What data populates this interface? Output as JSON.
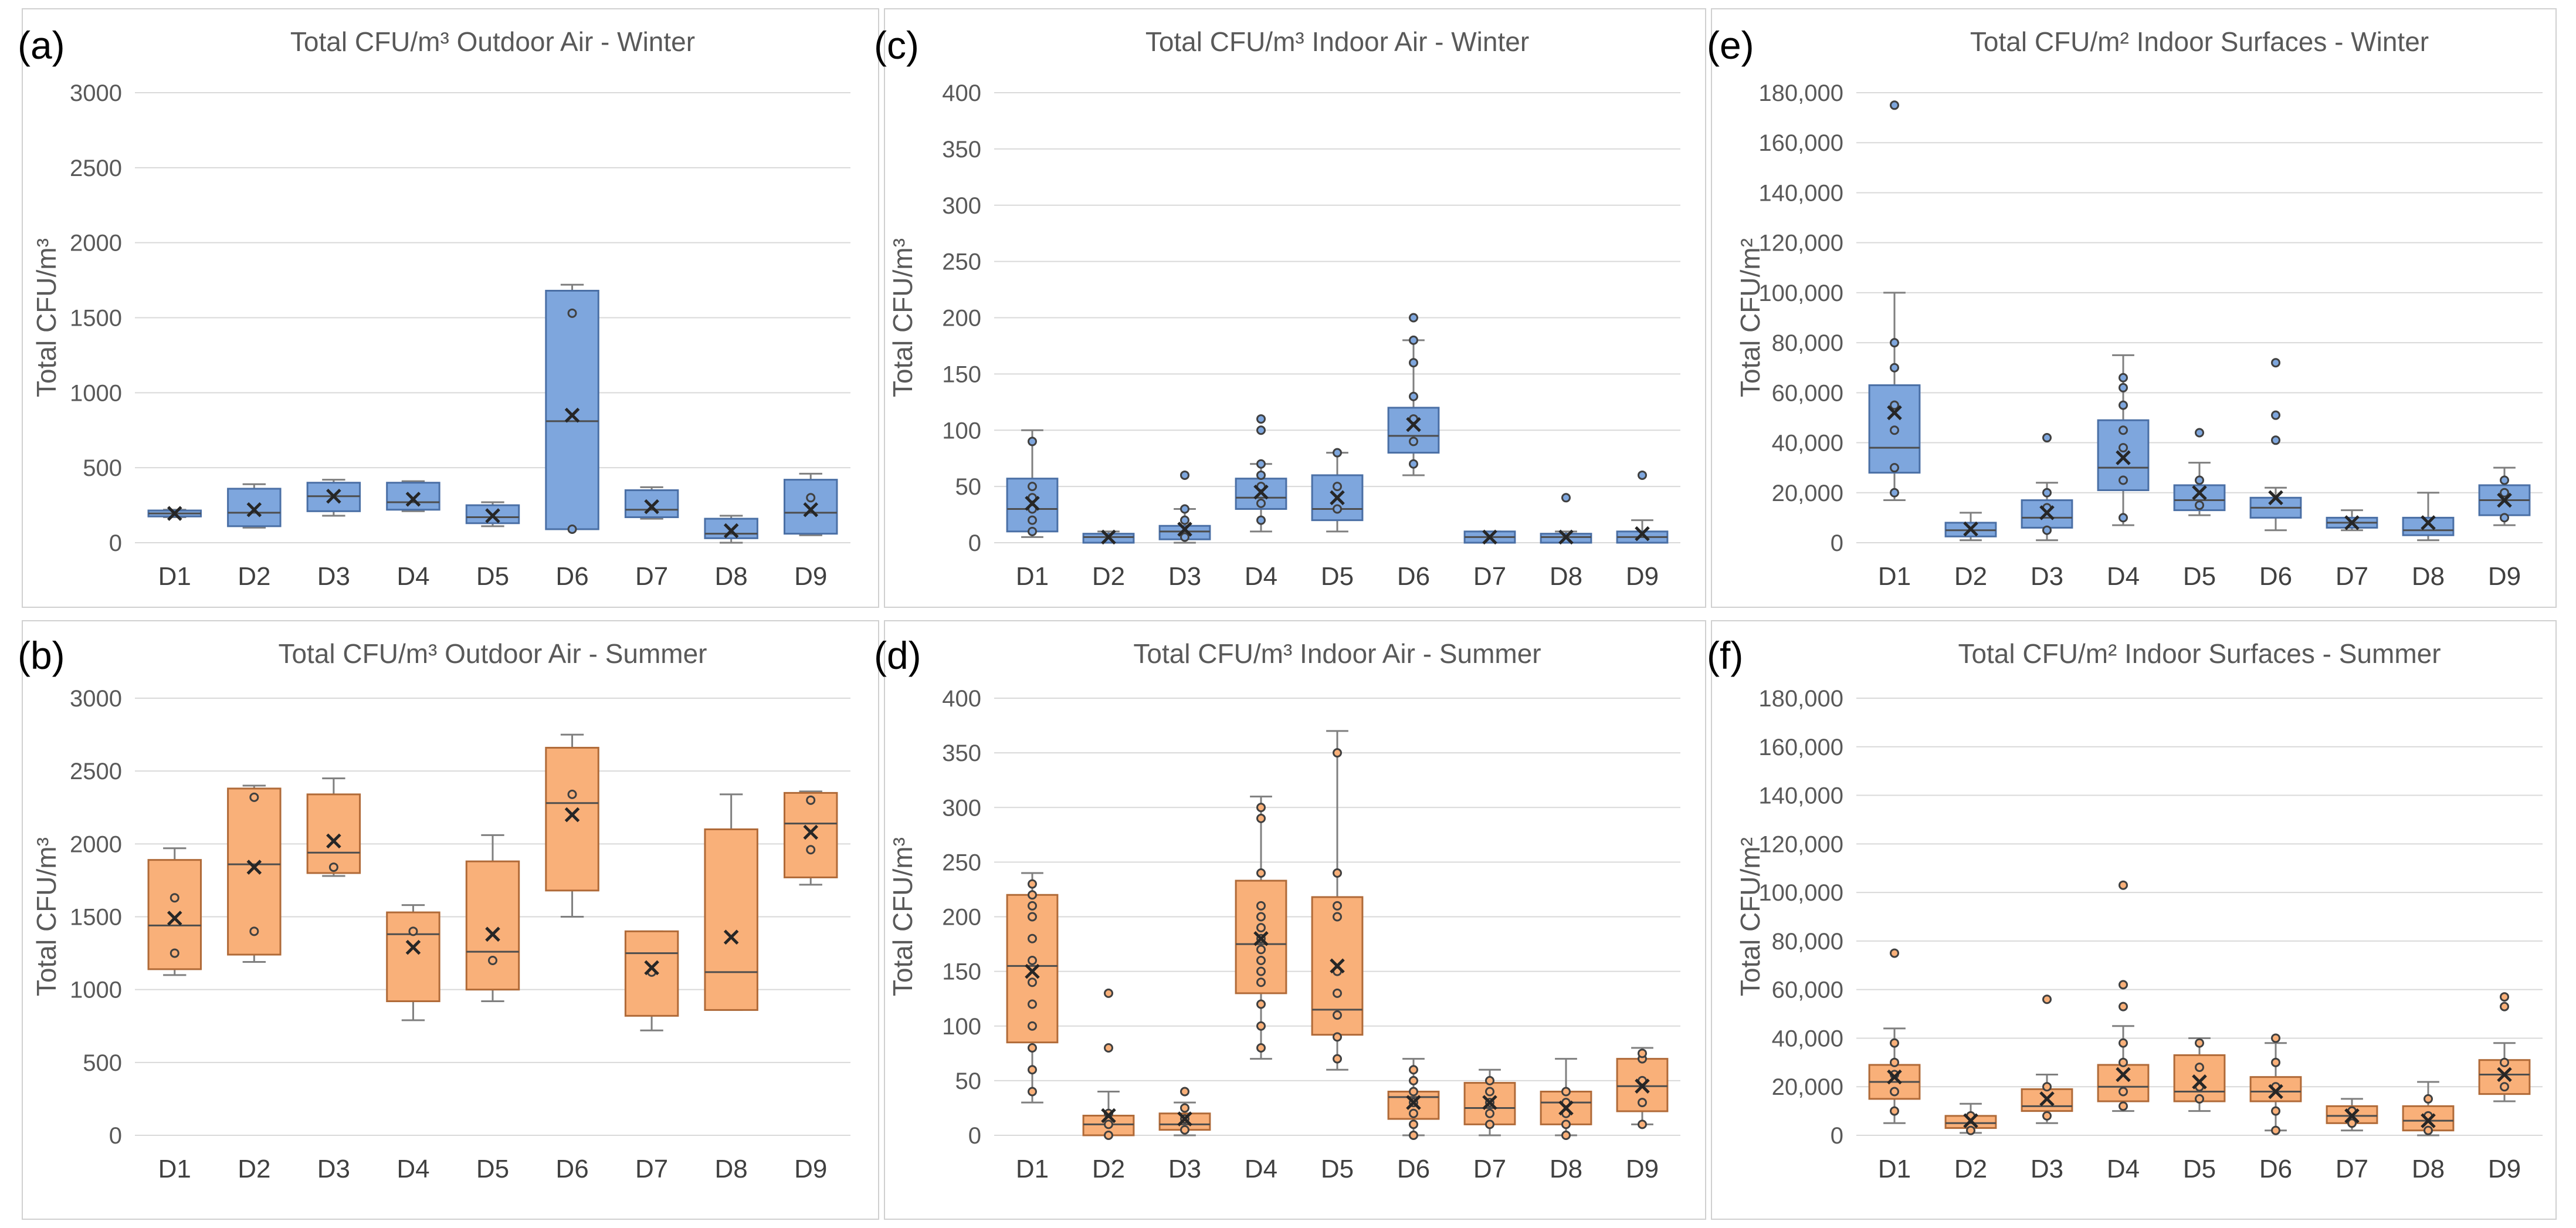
{
  "colors": {
    "winter": "#7ea6dd",
    "winter_edge": "#4a6fa5",
    "summer": "#f9b079",
    "summer_edge": "#b06a38"
  },
  "chart_data": [
    {
      "panel": "(a)",
      "season": "winter",
      "type": "box",
      "title": "Total CFU/m³ Outdoor Air - Winter",
      "ylabel": "Total CFU/m³",
      "ylim": [
        0,
        3000
      ],
      "ystep": 500,
      "ytick_format": "plain",
      "categories": [
        "D1",
        "D2",
        "D3",
        "D4",
        "D5",
        "D6",
        "D7",
        "D8",
        "D9"
      ],
      "boxes": [
        {
          "min": 170,
          "q1": 175,
          "median": 195,
          "q3": 215,
          "max": 220,
          "mean": 195,
          "points": []
        },
        {
          "min": 100,
          "q1": 110,
          "median": 200,
          "q3": 360,
          "max": 390,
          "mean": 220,
          "points": []
        },
        {
          "min": 180,
          "q1": 210,
          "median": 310,
          "q3": 400,
          "max": 420,
          "mean": 310,
          "points": []
        },
        {
          "min": 210,
          "q1": 220,
          "median": 270,
          "q3": 400,
          "max": 410,
          "mean": 290,
          "points": []
        },
        {
          "min": 110,
          "q1": 130,
          "median": 170,
          "q3": 250,
          "max": 270,
          "mean": 180,
          "points": []
        },
        {
          "min": 90,
          "q1": 90,
          "median": 810,
          "q3": 1680,
          "max": 1720,
          "mean": 850,
          "points": [
            90,
            1530
          ]
        },
        {
          "min": 160,
          "q1": 170,
          "median": 220,
          "q3": 350,
          "max": 370,
          "mean": 240,
          "points": []
        },
        {
          "min": 0,
          "q1": 30,
          "median": 60,
          "q3": 160,
          "max": 180,
          "mean": 80,
          "points": []
        },
        {
          "min": 50,
          "q1": 60,
          "median": 200,
          "q3": 420,
          "max": 460,
          "mean": 220,
          "points": [
            300
          ]
        }
      ]
    },
    {
      "panel": "(c)",
      "season": "winter",
      "type": "box",
      "title": "Total CFU/m³ Indoor Air - Winter",
      "ylabel": "Total CFU/m³",
      "ylim": [
        0,
        400
      ],
      "ystep": 50,
      "ytick_format": "plain",
      "categories": [
        "D1",
        "D2",
        "D3",
        "D4",
        "D5",
        "D6",
        "D7",
        "D8",
        "D9"
      ],
      "boxes": [
        {
          "min": 5,
          "q1": 10,
          "median": 30,
          "q3": 57,
          "max": 100,
          "mean": 35,
          "points": [
            10,
            20,
            30,
            40,
            50,
            90
          ]
        },
        {
          "min": 0,
          "q1": 0,
          "median": 5,
          "q3": 8,
          "max": 10,
          "mean": 5,
          "points": []
        },
        {
          "min": 0,
          "q1": 3,
          "median": 10,
          "q3": 15,
          "max": 30,
          "mean": 12,
          "points": [
            5,
            20,
            30,
            60
          ]
        },
        {
          "min": 10,
          "q1": 30,
          "median": 40,
          "q3": 57,
          "max": 70,
          "mean": 45,
          "points": [
            20,
            35,
            50,
            60,
            70,
            100,
            110
          ]
        },
        {
          "min": 10,
          "q1": 20,
          "median": 30,
          "q3": 60,
          "max": 80,
          "mean": 40,
          "points": [
            30,
            50,
            80
          ]
        },
        {
          "min": 60,
          "q1": 80,
          "median": 95,
          "q3": 120,
          "max": 180,
          "mean": 105,
          "points": [
            70,
            90,
            110,
            130,
            160,
            180,
            200
          ]
        },
        {
          "min": 0,
          "q1": 0,
          "median": 5,
          "q3": 10,
          "max": 10,
          "mean": 5,
          "points": []
        },
        {
          "min": 0,
          "q1": 0,
          "median": 5,
          "q3": 8,
          "max": 10,
          "mean": 5,
          "points": [
            40
          ]
        },
        {
          "min": 0,
          "q1": 0,
          "median": 5,
          "q3": 10,
          "max": 20,
          "mean": 8,
          "points": [
            60
          ]
        }
      ]
    },
    {
      "panel": "(e)",
      "season": "winter",
      "type": "box",
      "title": "Total CFU/m² Indoor Surfaces - Winter",
      "ylabel": "Total CFU/m²",
      "ylim": [
        0,
        180000
      ],
      "ystep": 20000,
      "ytick_format": "comma",
      "categories": [
        "D1",
        "D2",
        "D3",
        "D4",
        "D5",
        "D6",
        "D7",
        "D8",
        "D9"
      ],
      "boxes": [
        {
          "min": 17000,
          "q1": 28000,
          "median": 38000,
          "q3": 63000,
          "max": 100000,
          "mean": 52000,
          "points": [
            20000,
            30000,
            45000,
            55000,
            70000,
            80000,
            175000
          ]
        },
        {
          "min": 1000,
          "q1": 2500,
          "median": 5000,
          "q3": 8000,
          "max": 12000,
          "mean": 5500,
          "points": []
        },
        {
          "min": 1000,
          "q1": 6000,
          "median": 10000,
          "q3": 17000,
          "max": 24000,
          "mean": 12000,
          "points": [
            5000,
            14000,
            20000,
            42000
          ]
        },
        {
          "min": 7000,
          "q1": 21000,
          "median": 30000,
          "q3": 49000,
          "max": 75000,
          "mean": 34000,
          "points": [
            10000,
            25000,
            38000,
            45000,
            55000,
            62000,
            66000
          ]
        },
        {
          "min": 11000,
          "q1": 13000,
          "median": 17000,
          "q3": 23000,
          "max": 32000,
          "mean": 20000,
          "points": [
            15000,
            25000,
            44000
          ]
        },
        {
          "min": 5000,
          "q1": 10000,
          "median": 14000,
          "q3": 18000,
          "max": 22000,
          "mean": 18000,
          "points": [
            41000,
            51000,
            72000
          ]
        },
        {
          "min": 5000,
          "q1": 6000,
          "median": 8000,
          "q3": 10000,
          "max": 13000,
          "mean": 8000,
          "points": []
        },
        {
          "min": 1000,
          "q1": 3000,
          "median": 5000,
          "q3": 10000,
          "max": 20000,
          "mean": 8000,
          "points": []
        },
        {
          "min": 7000,
          "q1": 11000,
          "median": 17000,
          "q3": 23000,
          "max": 30000,
          "mean": 17000,
          "points": [
            10000,
            20000,
            25000
          ]
        }
      ]
    },
    {
      "panel": "(b)",
      "season": "summer",
      "type": "box",
      "title": "Total CFU/m³ Outdoor Air - Summer",
      "ylabel": "Total CFU/m³",
      "ylim": [
        0,
        3000
      ],
      "ystep": 500,
      "ytick_format": "plain",
      "categories": [
        "D1",
        "D2",
        "D3",
        "D4",
        "D5",
        "D6",
        "D7",
        "D8",
        "D9"
      ],
      "boxes": [
        {
          "min": 1100,
          "q1": 1140,
          "median": 1440,
          "q3": 1890,
          "max": 1970,
          "mean": 1490,
          "points": [
            1250,
            1630
          ]
        },
        {
          "min": 1190,
          "q1": 1240,
          "median": 1860,
          "q3": 2380,
          "max": 2400,
          "mean": 1840,
          "points": [
            1400,
            2320
          ]
        },
        {
          "min": 1780,
          "q1": 1800,
          "median": 1940,
          "q3": 2340,
          "max": 2450,
          "mean": 2020,
          "points": [
            1840
          ]
        },
        {
          "min": 790,
          "q1": 920,
          "median": 1380,
          "q3": 1530,
          "max": 1580,
          "mean": 1290,
          "points": [
            1400
          ]
        },
        {
          "min": 920,
          "q1": 1000,
          "median": 1260,
          "q3": 1880,
          "max": 2060,
          "mean": 1380,
          "points": [
            1200
          ]
        },
        {
          "min": 1500,
          "q1": 1680,
          "median": 2280,
          "q3": 2660,
          "max": 2750,
          "mean": 2200,
          "points": [
            2340
          ]
        },
        {
          "min": 720,
          "q1": 820,
          "median": 1250,
          "q3": 1400,
          "max": 1400,
          "mean": 1150,
          "points": [
            1120
          ]
        },
        {
          "min": 860,
          "q1": 860,
          "median": 1120,
          "q3": 2100,
          "max": 2340,
          "mean": 1360,
          "points": []
        },
        {
          "min": 1720,
          "q1": 1770,
          "median": 2140,
          "q3": 2350,
          "max": 2360,
          "mean": 2080,
          "points": [
            1960,
            2300
          ]
        }
      ]
    },
    {
      "panel": "(d)",
      "season": "summer",
      "type": "box",
      "title": "Total CFU/m³ Indoor Air - Summer",
      "ylabel": "Total CFU/m³",
      "ylim": [
        0,
        400
      ],
      "ystep": 50,
      "ytick_format": "plain",
      "categories": [
        "D1",
        "D2",
        "D3",
        "D4",
        "D5",
        "D6",
        "D7",
        "D8",
        "D9"
      ],
      "boxes": [
        {
          "min": 30,
          "q1": 85,
          "median": 155,
          "q3": 220,
          "max": 240,
          "mean": 150,
          "points": [
            40,
            60,
            80,
            100,
            120,
            140,
            160,
            180,
            200,
            210,
            220,
            230
          ]
        },
        {
          "min": 0,
          "q1": 0,
          "median": 10,
          "q3": 18,
          "max": 40,
          "mean": 18,
          "points": [
            0,
            10,
            20,
            80,
            130
          ]
        },
        {
          "min": 0,
          "q1": 5,
          "median": 10,
          "q3": 20,
          "max": 30,
          "mean": 15,
          "points": [
            5,
            15,
            25,
            40
          ]
        },
        {
          "min": 70,
          "q1": 130,
          "median": 175,
          "q3": 233,
          "max": 310,
          "mean": 180,
          "points": [
            80,
            100,
            120,
            140,
            150,
            160,
            170,
            180,
            190,
            200,
            210,
            240,
            290,
            300
          ]
        },
        {
          "min": 60,
          "q1": 92,
          "median": 115,
          "q3": 218,
          "max": 370,
          "mean": 155,
          "points": [
            70,
            90,
            110,
            130,
            150,
            200,
            210,
            240,
            350
          ]
        },
        {
          "min": 0,
          "q1": 15,
          "median": 35,
          "q3": 40,
          "max": 70,
          "mean": 30,
          "points": [
            0,
            10,
            20,
            30,
            40,
            50,
            60
          ]
        },
        {
          "min": 0,
          "q1": 10,
          "median": 25,
          "q3": 48,
          "max": 60,
          "mean": 30,
          "points": [
            10,
            20,
            30,
            40,
            50
          ]
        },
        {
          "min": 0,
          "q1": 10,
          "median": 30,
          "q3": 40,
          "max": 70,
          "mean": 25,
          "points": [
            0,
            10,
            20,
            30,
            40
          ]
        },
        {
          "min": 10,
          "q1": 22,
          "median": 45,
          "q3": 70,
          "max": 80,
          "mean": 45,
          "points": [
            10,
            30,
            50,
            70,
            75
          ]
        }
      ]
    },
    {
      "panel": "(f)",
      "season": "summer",
      "type": "box",
      "title": "Total CFU/m² Indoor Surfaces - Summer",
      "ylabel": "Total CFU/m²",
      "ylim": [
        0,
        180000
      ],
      "ystep": 20000,
      "ytick_format": "comma",
      "categories": [
        "D1",
        "D2",
        "D3",
        "D4",
        "D5",
        "D6",
        "D7",
        "D8",
        "D9"
      ],
      "boxes": [
        {
          "min": 5000,
          "q1": 15000,
          "median": 22000,
          "q3": 29000,
          "max": 44000,
          "mean": 24000,
          "points": [
            10000,
            18000,
            25000,
            30000,
            38000,
            75000
          ]
        },
        {
          "min": 1000,
          "q1": 3000,
          "median": 5000,
          "q3": 8000,
          "max": 13000,
          "mean": 6000,
          "points": [
            2000,
            8000
          ]
        },
        {
          "min": 5000,
          "q1": 10000,
          "median": 12000,
          "q3": 19000,
          "max": 25000,
          "mean": 15000,
          "points": [
            8000,
            20000,
            56000
          ]
        },
        {
          "min": 10000,
          "q1": 14000,
          "median": 20000,
          "q3": 29000,
          "max": 45000,
          "mean": 25000,
          "points": [
            12000,
            18000,
            30000,
            38000,
            53000,
            62000,
            103000
          ]
        },
        {
          "min": 10000,
          "q1": 14000,
          "median": 18000,
          "q3": 33000,
          "max": 40000,
          "mean": 22000,
          "points": [
            15000,
            20000,
            28000,
            38000
          ]
        },
        {
          "min": 2000,
          "q1": 14000,
          "median": 18000,
          "q3": 24000,
          "max": 38000,
          "mean": 18000,
          "points": [
            2000,
            10000,
            20000,
            30000,
            40000
          ]
        },
        {
          "min": 2000,
          "q1": 5000,
          "median": 8000,
          "q3": 12000,
          "max": 15000,
          "mean": 8000,
          "points": [
            5000,
            10000
          ]
        },
        {
          "min": 0,
          "q1": 2000,
          "median": 6000,
          "q3": 12000,
          "max": 22000,
          "mean": 6000,
          "points": [
            2000,
            8000,
            15000
          ]
        },
        {
          "min": 14000,
          "q1": 17000,
          "median": 25000,
          "q3": 31000,
          "max": 38000,
          "mean": 25000,
          "points": [
            20000,
            30000,
            53000,
            57000
          ]
        }
      ]
    }
  ]
}
